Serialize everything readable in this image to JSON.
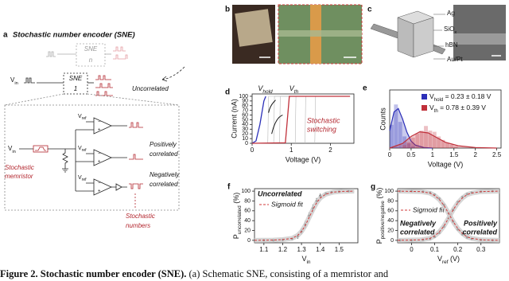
{
  "panel_a": {
    "label": "a",
    "title": "Stochastic number encoder (SNE)",
    "sne_n": [
      "SNE",
      "n"
    ],
    "sne_1": [
      "SNE",
      "1"
    ],
    "vin": {
      "main": "V",
      "sub": "in"
    },
    "vref": {
      "main": "V",
      "sub": "ref"
    },
    "signs": [
      "+",
      "−"
    ],
    "uncorrelated": "Uncorrelated",
    "memristor": [
      "Stochastic",
      "memristor"
    ],
    "positive": [
      "Positively",
      "correlated"
    ],
    "negative": [
      "Negatively",
      "correlated"
    ],
    "numbers": [
      "Stochastic",
      "numbers"
    ]
  },
  "panel_b": {
    "label": "b"
  },
  "panel_c": {
    "label": "c",
    "layers": [
      "Ag",
      {
        "main": "SiO",
        "sub": "x"
      },
      "hBN",
      "Au/Pt"
    ]
  },
  "caption": {
    "bold": "Figure 2. Stochastic number encoder (SNE).",
    "text": " (a) Schematic SNE, consisting of a memristor and"
  },
  "chart_data": [
    {
      "type": "line",
      "panel": "d",
      "xlabel": "Voltage (V)",
      "ylabel": "Current (nA)",
      "xlim": [
        0,
        2.6
      ],
      "xticks": [
        0,
        1,
        2
      ],
      "ylim": [
        0,
        105
      ],
      "yticks": [
        0,
        10,
        20,
        30,
        40,
        50,
        60,
        70,
        80,
        90,
        100
      ],
      "annotations": [
        {
          "main": "V",
          "sub": "hold"
        },
        {
          "main": "V",
          "sub": "th"
        }
      ],
      "annotation_lines": [
        "Stochastic",
        "switching"
      ],
      "series": [
        {
          "color": "#b8b8b8",
          "x": [
            0.4,
            0.42,
            2.5
          ],
          "values": [
            0,
            100,
            100
          ]
        },
        {
          "color": "#b8b8b8",
          "x": [
            0.55,
            0.57,
            2.5
          ],
          "values": [
            0,
            100,
            100
          ]
        },
        {
          "color": "#b8b8b8",
          "x": [
            0.7,
            0.72,
            2.5
          ],
          "values": [
            0,
            100,
            100
          ]
        },
        {
          "color": "#b8b8b8",
          "x": [
            1.1,
            1.12,
            2.5
          ],
          "values": [
            0,
            100,
            100
          ]
        },
        {
          "color": "#b8b8b8",
          "x": [
            1.35,
            1.37,
            2.5
          ],
          "values": [
            0,
            100,
            100
          ]
        },
        {
          "color": "#b8b8b8",
          "x": [
            1.6,
            1.62,
            2.5
          ],
          "values": [
            0,
            100,
            100
          ]
        },
        {
          "color": "#2b2fb8",
          "x": [
            0,
            0.1,
            0.2,
            0.3,
            0.35
          ],
          "values": [
            0,
            5,
            40,
            90,
            100
          ]
        },
        {
          "color": "#c0303a",
          "x": [
            0,
            0.85,
            0.9,
            0.95,
            2.5
          ],
          "values": [
            0,
            1,
            50,
            100,
            100
          ]
        }
      ]
    },
    {
      "type": "histogram",
      "panel": "e",
      "xlabel": "Voltage (V)",
      "ylabel": "Counts",
      "xlim": [
        0,
        2.6
      ],
      "xticks": [
        0,
        0.5,
        1,
        1.5,
        2,
        2.5
      ],
      "ylim": [
        0,
        100
      ],
      "series": [
        {
          "name": {
            "main": "V",
            "sub": "hold",
            "rest": " = 0.23 ± 0.18 V"
          },
          "color": "#2b2fb8",
          "bins": [
            0,
            0.1,
            0.2,
            0.3,
            0.4,
            0.5,
            0.6
          ],
          "values": [
            40,
            75,
            45,
            20,
            8,
            3
          ],
          "fit_x": [
            0,
            0.1,
            0.2,
            0.3,
            0.4,
            0.5,
            0.6,
            0.8,
            1.0
          ],
          "fit": [
            30,
            62,
            68,
            50,
            28,
            12,
            5,
            1,
            0
          ]
        },
        {
          "name": {
            "main": "V",
            "sub": "th",
            "rest": " = 0.78 ± 0.39 V"
          },
          "color": "#c0303a",
          "bins": [
            0.3,
            0.4,
            0.5,
            0.6,
            0.7,
            0.8,
            0.9,
            1.0,
            1.1,
            1.2,
            1.3,
            1.4,
            1.5,
            1.6
          ],
          "values": [
            5,
            10,
            18,
            25,
            30,
            38,
            30,
            28,
            20,
            14,
            9,
            6,
            3
          ],
          "fit_x": [
            0,
            0.3,
            0.5,
            0.7,
            0.9,
            1.1,
            1.3,
            1.6,
            2.0,
            2.5
          ],
          "fit": [
            0,
            8,
            20,
            28,
            26,
            18,
            10,
            4,
            1,
            0
          ]
        }
      ]
    },
    {
      "type": "scatter",
      "panel": "f",
      "xlabel": {
        "main": "V",
        "sub": "in"
      },
      "ylabel": {
        "main": "P",
        "sub": "uncorrelated",
        "rest": " (%)"
      },
      "xlim": [
        1.05,
        1.6
      ],
      "xticks": [
        1.1,
        1.2,
        1.3,
        1.4,
        1.5
      ],
      "ylim": [
        -5,
        105
      ],
      "yticks": [
        0,
        20,
        40,
        60,
        80,
        100
      ],
      "annotations": [
        "Uncorrelated"
      ],
      "series": [
        {
          "color": "#000000",
          "x": [
            1.1,
            1.15,
            1.2,
            1.25,
            1.28,
            1.3,
            1.32,
            1.34,
            1.36,
            1.38,
            1.4,
            1.43,
            1.46,
            1.5,
            1.55
          ],
          "values": [
            0,
            0,
            1,
            3,
            8,
            18,
            32,
            50,
            65,
            80,
            90,
            95,
            98,
            99,
            100
          ],
          "errors": [
            1,
            1,
            2,
            3,
            5,
            6,
            8,
            7,
            8,
            6,
            5,
            3,
            2,
            1,
            1
          ]
        },
        {
          "name": "Sigmoid fit",
          "color": "#d03a3a",
          "fit": true,
          "x": [
            1.05,
            1.15,
            1.2,
            1.25,
            1.28,
            1.3,
            1.32,
            1.34,
            1.36,
            1.38,
            1.4,
            1.43,
            1.47,
            1.52,
            1.58
          ],
          "values": [
            0,
            0.5,
            1.5,
            4,
            10,
            18,
            30,
            46,
            62,
            76,
            86,
            94,
            98,
            99.5,
            100
          ]
        }
      ]
    },
    {
      "type": "scatter",
      "panel": "g",
      "xlabel": {
        "main": "V",
        "sub": "ref",
        "rest": " (V)"
      },
      "ylabel": {
        "main": "P",
        "sub": "positive/negative",
        "rest": " (%)"
      },
      "xlim": [
        -0.06,
        0.38
      ],
      "xticks": [
        0,
        0.1,
        0.2,
        0.3
      ],
      "ylim": [
        -5,
        105
      ],
      "yticks": [
        0,
        20,
        40,
        60,
        80,
        100
      ],
      "annotation_lines": [
        "Negatively",
        "correlated",
        "Positively",
        "correlated"
      ],
      "series": [
        {
          "color": "#000000",
          "x": [
            -0.05,
            0,
            0.05,
            0.08,
            0.1,
            0.12,
            0.14,
            0.16,
            0.18,
            0.2,
            0.22,
            0.24,
            0.26,
            0.3,
            0.35
          ],
          "values": [
            0,
            0,
            1,
            3,
            7,
            15,
            28,
            45,
            62,
            78,
            88,
            94,
            97,
            99,
            100
          ]
        },
        {
          "color": "#000000",
          "x": [
            -0.05,
            0,
            0.05,
            0.08,
            0.1,
            0.12,
            0.14,
            0.16,
            0.18,
            0.2,
            0.22,
            0.24,
            0.26,
            0.3,
            0.35
          ],
          "values": [
            100,
            100,
            99,
            97,
            93,
            85,
            72,
            55,
            38,
            22,
            12,
            6,
            3,
            1,
            0
          ]
        },
        {
          "name": "Sigmoid fit",
          "color": "#d03a3a",
          "fit": true,
          "x": [
            -0.06,
            0.04,
            0.08,
            0.1,
            0.12,
            0.14,
            0.16,
            0.18,
            0.2,
            0.22,
            0.24,
            0.26,
            0.3,
            0.38
          ],
          "values": [
            0,
            1,
            4,
            9,
            17,
            29,
            45,
            62,
            76,
            86,
            93,
            96,
            99,
            100
          ]
        },
        {
          "color": "#d03a3a",
          "fit": true,
          "x": [
            -0.06,
            0.04,
            0.08,
            0.1,
            0.12,
            0.14,
            0.16,
            0.18,
            0.2,
            0.22,
            0.24,
            0.26,
            0.3,
            0.38
          ],
          "values": [
            100,
            99,
            96,
            91,
            83,
            71,
            55,
            38,
            24,
            14,
            7,
            4,
            1,
            0
          ]
        }
      ]
    }
  ]
}
